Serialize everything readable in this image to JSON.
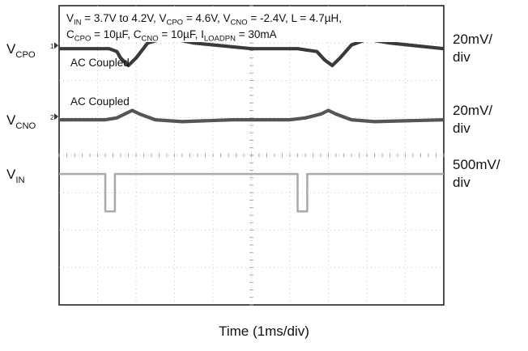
{
  "chart_data": {
    "type": "line",
    "title_line1_parts": [
      [
        "V",
        "IN",
        " = 3.7V to 4.2V, "
      ],
      [
        "V",
        "CPO",
        " = 4.6V, "
      ],
      [
        "V",
        "CNO",
        " = -2.4V, L = 4.7µH,"
      ]
    ],
    "title_line2_parts": [
      [
        "C",
        "CPO",
        " = 10µF, "
      ],
      [
        "C",
        "CNO",
        " = 10µF, "
      ],
      [
        "I",
        "LOADPN",
        " = 30mA"
      ]
    ],
    "xlabel": "Time (1ms/div)",
    "grid": true,
    "divisions": {
      "x": 10,
      "y": 8
    },
    "time_per_div_ms": 1,
    "series": [
      {
        "name_main": "V",
        "name_sub": "CPO",
        "channel_marker": "1",
        "scale": "20mV/",
        "scale_unit": "div",
        "note": "AC Coupled",
        "color": "#3a3a3a",
        "baseline_div": 1.15,
        "x": [
          0,
          1.3,
          1.5,
          1.6,
          1.8,
          2.0,
          2.3,
          2.8,
          3.5,
          5.0,
          6.2,
          6.7,
          6.9,
          7.1,
          7.3,
          7.6,
          8.0,
          8.6,
          10
        ],
        "y_mv": [
          0,
          0,
          -1.5,
          -5,
          -9,
          -5,
          3,
          6,
          3,
          0,
          0,
          -1.5,
          -6,
          -9,
          -5,
          2,
          5,
          3,
          0
        ]
      },
      {
        "name_main": "V",
        "name_sub": "CNO",
        "channel_marker": "2",
        "scale": "20mV/",
        "scale_unit": "div",
        "note": "AC Coupled",
        "color": "#555555",
        "baseline_div": 3.05,
        "x": [
          0,
          1.2,
          1.5,
          1.7,
          1.9,
          2.1,
          2.5,
          3.2,
          4.5,
          6.0,
          6.4,
          6.8,
          7.0,
          7.2,
          7.6,
          8.2,
          10
        ],
        "y_mv": [
          0,
          0,
          1,
          3,
          5,
          3,
          0,
          -1,
          0,
          0,
          1,
          3,
          5,
          3,
          0,
          -1,
          0
        ]
      },
      {
        "name_main": "V",
        "name_sub": "IN",
        "scale": "500mV/",
        "scale_unit": "div",
        "color": "#a9a9a9",
        "baseline_div": 4.5,
        "x": [
          0,
          1.2,
          1.2,
          1.45,
          1.45,
          6.2,
          6.2,
          6.45,
          6.45,
          10
        ],
        "y_mv": [
          0,
          0,
          -500,
          -500,
          0,
          0,
          -500,
          -500,
          0,
          0
        ]
      }
    ]
  }
}
